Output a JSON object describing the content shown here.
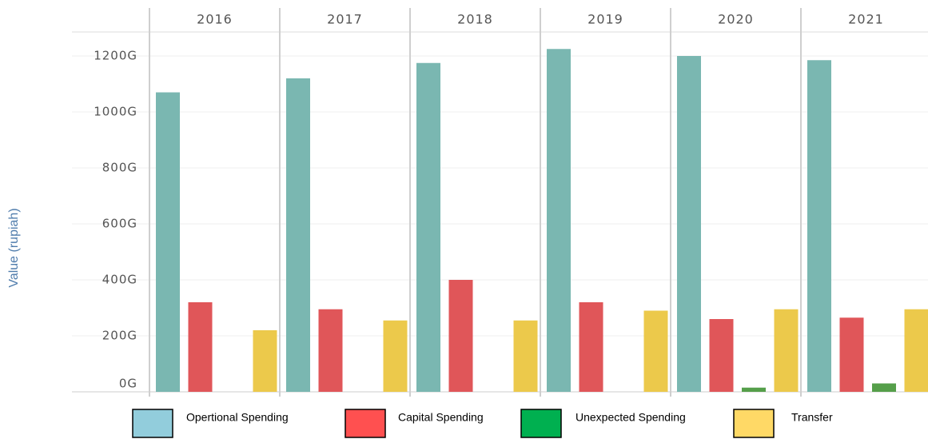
{
  "chart_data": {
    "type": "bar",
    "y_label": "Value (rupiah)",
    "categories": [
      "2016",
      "2017",
      "2018",
      "2019",
      "2020",
      "2021"
    ],
    "series": [
      {
        "name": "Opertional Spending",
        "color": "#7ab7b1",
        "legend_color": "#92cddc",
        "values": [
          1070,
          1120,
          1175,
          1225,
          1200,
          1185
        ]
      },
      {
        "name": "Capital Spending",
        "color": "#e05659",
        "legend_color": "#ff5050",
        "values": [
          320,
          295,
          400,
          320,
          260,
          265
        ]
      },
      {
        "name": "Unexpected Spending",
        "color": "#559f4a",
        "legend_color": "#00b050",
        "values": [
          null,
          null,
          null,
          null,
          15,
          30
        ]
      },
      {
        "name": "Transfer",
        "color": "#ecc94b",
        "legend_color": "#ffd966",
        "values": [
          220,
          255,
          255,
          290,
          295,
          295
        ]
      }
    ],
    "ylim": [
      0,
      1200
    ],
    "yticks": [
      {
        "value": 0,
        "label": "0G"
      },
      {
        "value": 200,
        "label": "200G"
      },
      {
        "value": 400,
        "label": "400G"
      },
      {
        "value": 600,
        "label": "600G"
      },
      {
        "value": 800,
        "label": "800G"
      },
      {
        "value": 1000,
        "label": "1000G"
      },
      {
        "value": 1200,
        "label": "1200G"
      }
    ],
    "grid": true
  }
}
